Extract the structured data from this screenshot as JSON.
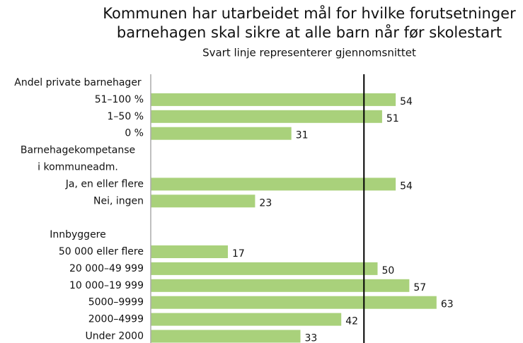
{
  "chart_data": {
    "type": "bar",
    "orientation": "horizontal",
    "title": [
      "Kommunen har utarbeidet mål for hvilke forutsetninger",
      "barnehagen skal sikre at alle barn når før skolestart"
    ],
    "subtitle": "Svart linje representerer gjennomsnittet",
    "categories": [
      "Andel private barnehager",
      "51–100 %",
      "1–50 %",
      "0 %",
      "Barnehagekompetanse",
      "i kommuneadm.",
      "Ja, en eller flere",
      "Nei, ingen",
      null,
      "Innbyggere",
      "50 000 eller flere",
      "20 000–49 999",
      "10 000–19 999",
      "5000–9999",
      "2000–4999",
      "Under 2000"
    ],
    "values": [
      null,
      54,
      51,
      31,
      null,
      null,
      54,
      23,
      null,
      null,
      17,
      50,
      57,
      63,
      42,
      33
    ],
    "color": "#a9d17b",
    "average": 47,
    "xlim": [
      0,
      70
    ]
  }
}
